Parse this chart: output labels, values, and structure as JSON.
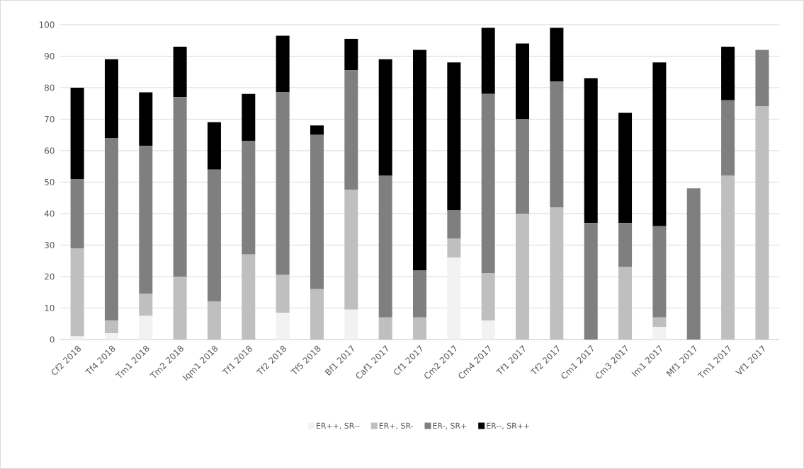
{
  "chart_data": {
    "type": "bar",
    "stacked": true,
    "categories": [
      "Cf2 2018",
      "Tf4 2018",
      "Tm1 2018",
      "Tm2 2018",
      "Iqm1 2018",
      "Tf1 2018",
      "Tf2 2018",
      "Tf5 2018",
      "Bf1 2017",
      "Caf1 2017",
      "Cf1 2017",
      "Cm2 2017",
      "Cm4 2017",
      "Tf1 2017",
      "Tf2 2017",
      "Cm1 2017",
      "Cm3 2017",
      "Im1 2017",
      "Mf1 2017",
      "Tm1 2017",
      "Vf1 2017"
    ],
    "series": [
      {
        "name": "ER++, SR--",
        "color": "#f2f2f2",
        "values": [
          1,
          2,
          7.5,
          0,
          0,
          0,
          8.5,
          0,
          9.5,
          0,
          0,
          26,
          6,
          0,
          0,
          0,
          0,
          4,
          0,
          0,
          0
        ]
      },
      {
        "name": "ER+, SR-",
        "color": "#bfbfbf",
        "values": [
          28,
          4,
          7,
          20,
          12,
          27,
          12,
          16,
          38,
          7,
          7,
          6,
          15,
          40,
          42,
          0,
          23,
          3,
          0,
          52,
          74
        ]
      },
      {
        "name": "ER-, SR+",
        "color": "#7f7f7f",
        "values": [
          22,
          58,
          47,
          57,
          42,
          36,
          58,
          49,
          38,
          45,
          15,
          9,
          57,
          30,
          40,
          37,
          14,
          29,
          48,
          24,
          18
        ]
      },
      {
        "name": "ER--, SR++",
        "color": "#000000",
        "values": [
          29,
          25,
          17,
          16,
          15,
          15,
          18,
          3,
          10,
          37,
          70,
          47,
          21,
          24,
          17,
          46,
          35,
          52,
          0,
          17,
          0
        ]
      }
    ],
    "ylim": [
      0,
      100
    ],
    "yticks": [
      0,
      10,
      20,
      30,
      40,
      50,
      60,
      70,
      80,
      90,
      100
    ],
    "grid": "y",
    "legend": "bottom"
  }
}
